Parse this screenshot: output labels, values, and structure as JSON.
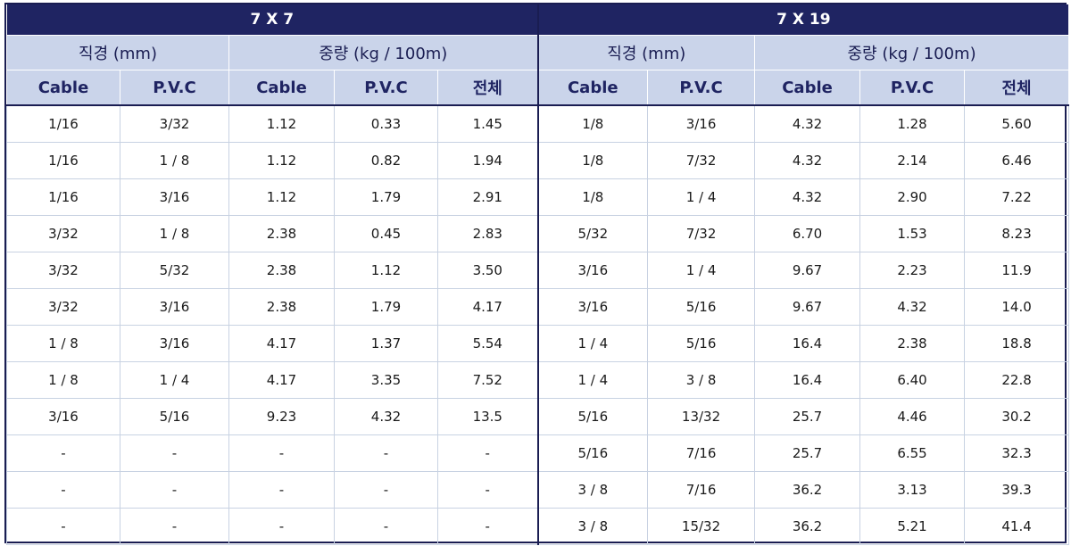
{
  "groups": [
    "7 X 7",
    "7 X 19"
  ],
  "subheaders": {
    "diameter": "직경 (mm)",
    "weight": "중량 (kg / 100m)"
  },
  "columns": [
    "Cable",
    "P.V.C",
    "Cable",
    "P.V.C",
    "전체",
    "Cable",
    "P.V.C",
    "Cable",
    "P.V.C",
    "전체"
  ],
  "rows": [
    [
      "1/16",
      "3/32",
      "1.12",
      "0.33",
      "1.45",
      "1/8",
      "3/16",
      "4.32",
      "1.28",
      "5.60"
    ],
    [
      "1/16",
      "1 / 8",
      "1.12",
      "0.82",
      "1.94",
      "1/8",
      "7/32",
      "4.32",
      "2.14",
      "6.46"
    ],
    [
      "1/16",
      "3/16",
      "1.12",
      "1.79",
      "2.91",
      "1/8",
      "1 / 4",
      "4.32",
      "2.90",
      "7.22"
    ],
    [
      "3/32",
      "1 / 8",
      "2.38",
      "0.45",
      "2.83",
      "5/32",
      "7/32",
      "6.70",
      "1.53",
      "8.23"
    ],
    [
      "3/32",
      "5/32",
      "2.38",
      "1.12",
      "3.50",
      "3/16",
      "1 / 4",
      "9.67",
      "2.23",
      "11.9"
    ],
    [
      "3/32",
      "3/16",
      "2.38",
      "1.79",
      "4.17",
      "3/16",
      "5/16",
      "9.67",
      "4.32",
      "14.0"
    ],
    [
      "1 / 8",
      "3/16",
      "4.17",
      "1.37",
      "5.54",
      "1 / 4",
      "5/16",
      "16.4",
      "2.38",
      "18.8"
    ],
    [
      "1 / 8",
      "1 / 4",
      "4.17",
      "3.35",
      "7.52",
      "1 / 4",
      "3 / 8",
      "16.4",
      "6.40",
      "22.8"
    ],
    [
      "3/16",
      "5/16",
      "9.23",
      "4.32",
      "13.5",
      "5/16",
      "13/32",
      "25.7",
      "4.46",
      "30.2"
    ],
    [
      "-",
      "-",
      "-",
      "-",
      "-",
      "5/16",
      "7/16",
      "25.7",
      "6.55",
      "32.3"
    ],
    [
      "-",
      "-",
      "-",
      "-",
      "-",
      "3 / 8",
      "7/16",
      "36.2",
      "3.13",
      "39.3"
    ],
    [
      "-",
      "-",
      "-",
      "-",
      "-",
      "3 / 8",
      "15/32",
      "36.2",
      "5.21",
      "41.4"
    ]
  ]
}
